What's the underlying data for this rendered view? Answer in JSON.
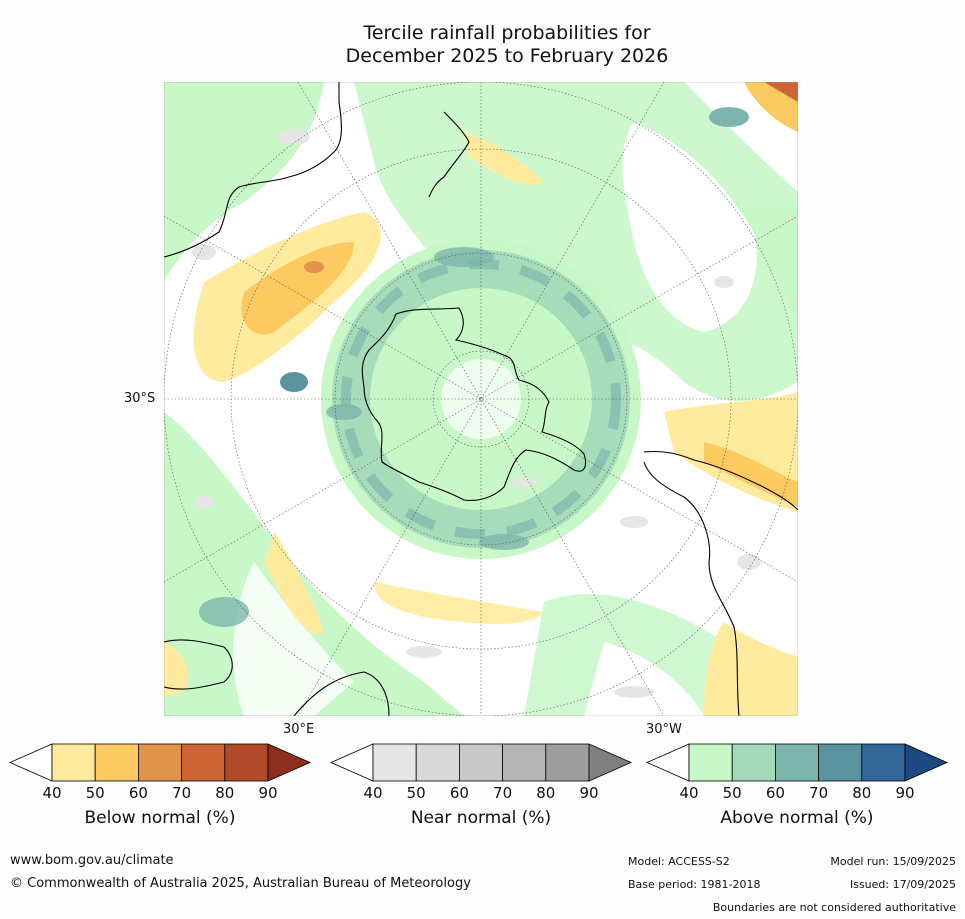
{
  "title_line1": "Tercile rainfall probabilities for",
  "title_line2": "December 2025 to February 2026",
  "map": {
    "lat_label": "30°S",
    "lon_label_east": "30°E",
    "lon_label_west": "30°W",
    "projection": "south polar stereographic",
    "graticule": "dotted"
  },
  "legends": [
    {
      "title": "Below normal (%)",
      "ticks": [
        "40",
        "50",
        "60",
        "70",
        "80",
        "90"
      ],
      "colors": [
        "#ffffff",
        "#ffeb9e",
        "#fdc961",
        "#e0944a",
        "#cc6533",
        "#b04a28",
        "#8c2f1d"
      ]
    },
    {
      "title": "Near normal (%)",
      "ticks": [
        "40",
        "50",
        "60",
        "70",
        "80",
        "90"
      ],
      "colors": [
        "#ffffff",
        "#e6e6e6",
        "#d8d8d8",
        "#c8c8c8",
        "#b4b4b4",
        "#9e9e9e",
        "#808080"
      ]
    },
    {
      "title": "Above normal (%)",
      "ticks": [
        "40",
        "50",
        "60",
        "70",
        "80",
        "90"
      ],
      "colors": [
        "#ffffff",
        "#c8f7c8",
        "#a3d8b8",
        "#7db5ad",
        "#5a93a0",
        "#35679a",
        "#1a4a80"
      ]
    }
  ],
  "footer": {
    "url": "www.bom.gov.au/climate",
    "copyright": "© Commonwealth of Australia 2025, Australian Bureau of Meteorology",
    "model": "Model: ACCESS-S2",
    "model_run": "Model run: 15/09/2025",
    "base_period": "Base period: 1981-2018",
    "issued": "Issued: 17/09/2025",
    "boundaries": "Boundaries are not considered authoritative"
  }
}
